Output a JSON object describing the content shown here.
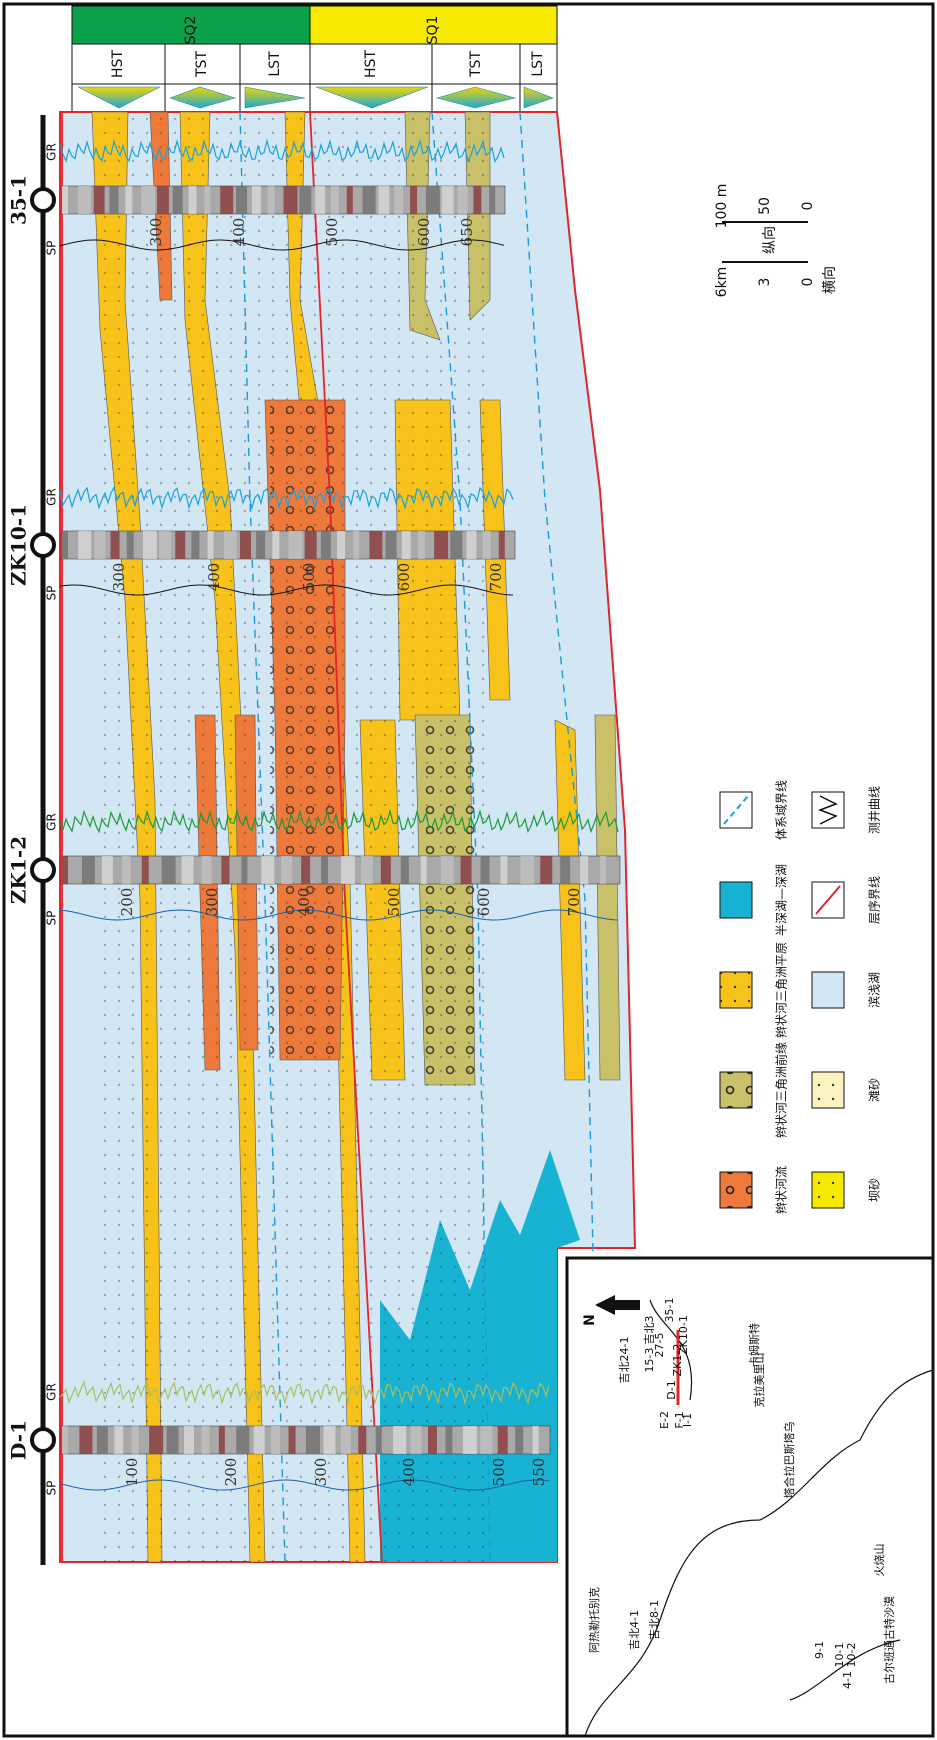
{
  "header": {
    "sequences": [
      "SQ2",
      "SQ1"
    ],
    "systems_tracts": [
      "HST",
      "TST",
      "LST",
      "HST",
      "TST",
      "LST"
    ]
  },
  "wells": [
    {
      "name": "35-1",
      "curves": [
        "SP",
        "GR"
      ],
      "depths": [
        "300",
        "400",
        "500",
        "600",
        "650"
      ]
    },
    {
      "name": "ZK10-1",
      "curves": [
        "SP",
        "GR"
      ],
      "depths": [
        "300",
        "400",
        "500",
        "600",
        "700"
      ]
    },
    {
      "name": "ZK1-2",
      "curves": [
        "SP",
        "GR"
      ],
      "depths": [
        "200",
        "300",
        "400",
        "500",
        "600",
        "700"
      ]
    },
    {
      "name": "D-1",
      "curves": [
        "SP",
        "GR"
      ],
      "depths": [
        "100",
        "200",
        "300",
        "400",
        "500",
        "550"
      ]
    }
  ],
  "scale": {
    "vertical_label": "纵向",
    "vertical_ticks": [
      "0",
      "50",
      "100 m"
    ],
    "horizontal_label": "横向",
    "horizontal_ticks": [
      "0",
      "3",
      "6km"
    ]
  },
  "legend": [
    "辫状河流",
    "坝砂",
    "辫状河三角洲前缘",
    "滩砂",
    "辫状河三角洲平原",
    "滨浅湖",
    "半深湖—深湖",
    "层序界线",
    "体系域界线",
    "测井曲线"
  ],
  "map": {
    "north": "N",
    "places": [
      "阿热勒托别克",
      "卡姆斯特",
      "塔合拉巴斯塔乌",
      "火烧山",
      "古尔班通古特沙漠",
      "克拉美里山"
    ],
    "wells": [
      "吉北4-1",
      "吉北8-1",
      "吉北24-1",
      "吉北3",
      "E-2",
      "F-1",
      "I-1",
      "D-1",
      "ZK1-2",
      "ZK10-1",
      "15-3",
      "27-5",
      "35-1",
      "9-1",
      "10-1",
      "10-2",
      "4-1"
    ]
  }
}
